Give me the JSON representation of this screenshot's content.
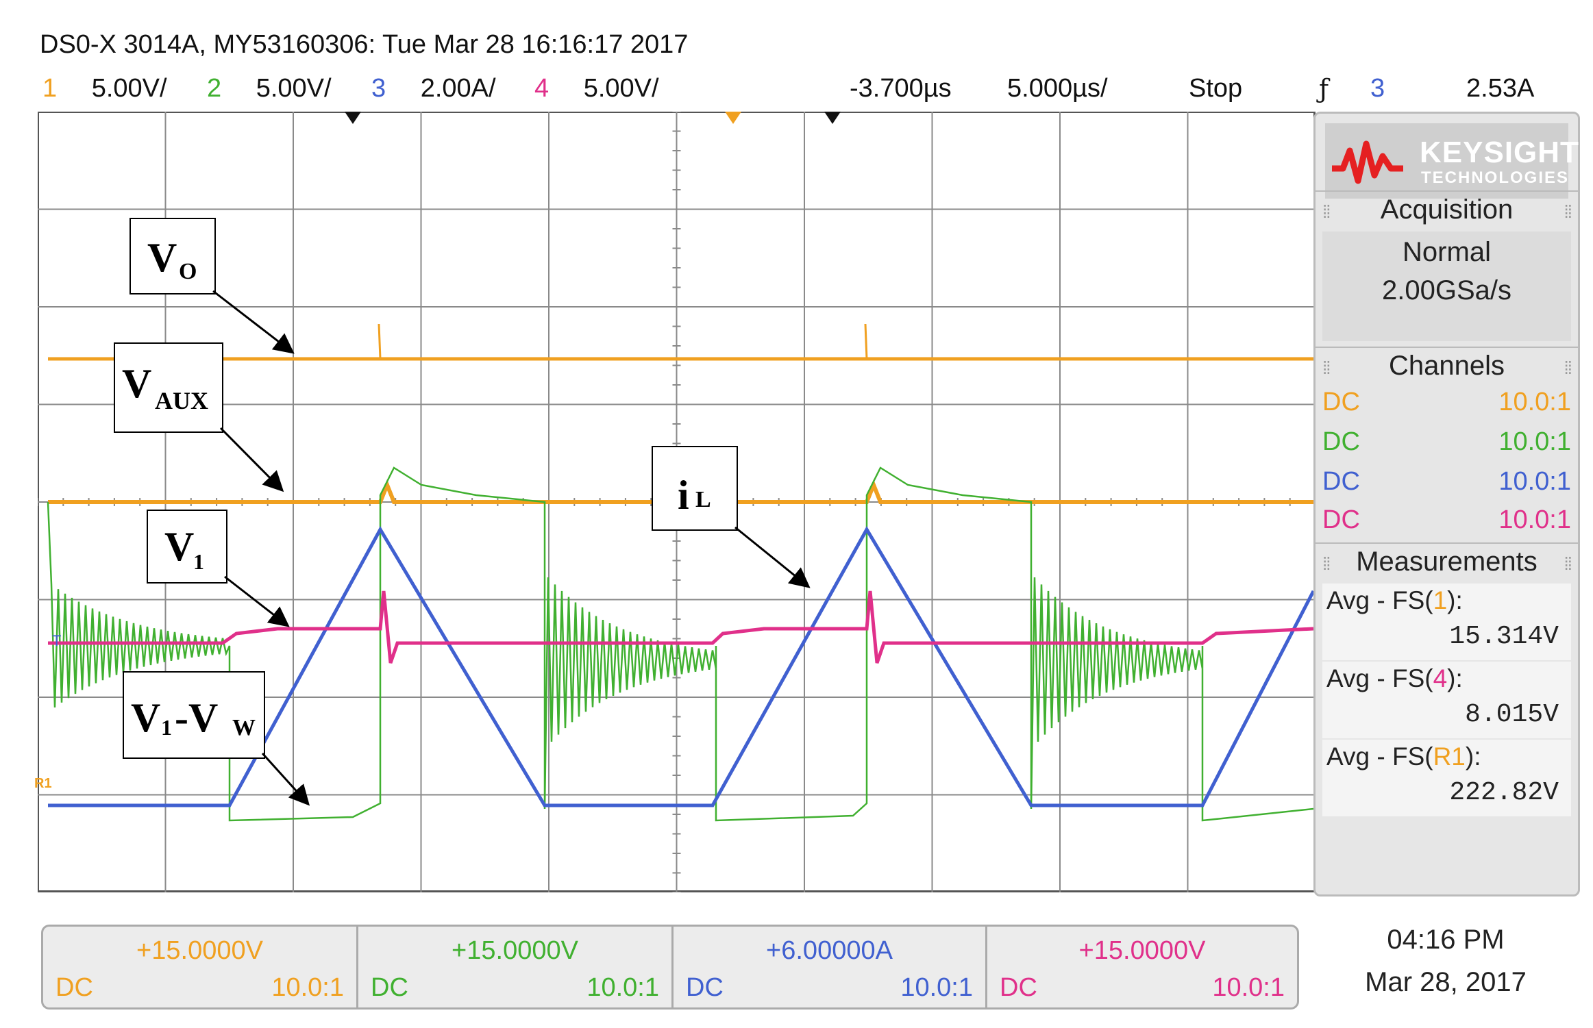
{
  "header": {
    "title": "DS0-X 3014A, MY53160306: Tue Mar 28 16:16:17 2017",
    "channels": [
      {
        "num": "1",
        "scale": "5.00V/",
        "color": "#f0a020"
      },
      {
        "num": "2",
        "scale": "5.00V/",
        "color": "#40b030"
      },
      {
        "num": "3",
        "scale": "2.00A/",
        "color": "#4060d0"
      },
      {
        "num": "4",
        "scale": "5.00V/",
        "color": "#e0308a"
      }
    ],
    "delay": "-3.700µs",
    "timebase": "5.000µs/",
    "run_state": "Stop",
    "trigger_icon": "ƒ",
    "trigger_channel": "3",
    "trigger_level": "2.53A"
  },
  "sidebar": {
    "brand": "KEYSIGHT",
    "brand_sub": "TECHNOLOGIES",
    "acquisition": {
      "title": "Acquisition",
      "mode": "Normal",
      "rate": "2.00GSa/s"
    },
    "channels": {
      "title": "Channels",
      "rows": [
        {
          "coupling": "DC",
          "ratio": "10.0:1",
          "color": "#f0a020"
        },
        {
          "coupling": "DC",
          "ratio": "10.0:1",
          "color": "#40b030"
        },
        {
          "coupling": "DC",
          "ratio": "10.0:1",
          "color": "#4060d0"
        },
        {
          "coupling": "DC",
          "ratio": "10.0:1",
          "color": "#e0308a"
        }
      ]
    },
    "measurements": {
      "title": "Measurements",
      "items": [
        {
          "prefix": "Avg - FS(",
          "src": "1",
          "suffix": "):",
          "value": "15.314V",
          "color": "#f0a020"
        },
        {
          "prefix": "Avg - FS(",
          "src": "4",
          "suffix": "):",
          "value": "8.015V",
          "color": "#e0308a"
        },
        {
          "prefix": "Avg - FS(",
          "src": "R1",
          "suffix": "):",
          "value": "222.82V",
          "color": "#f0a020"
        }
      ]
    }
  },
  "bottom": {
    "cells": [
      {
        "offset": "+15.0000V",
        "coupling": "DC",
        "ratio": "10.0:1",
        "color": "#f0a020"
      },
      {
        "offset": "+15.0000V",
        "coupling": "DC",
        "ratio": "10.0:1",
        "color": "#40b030"
      },
      {
        "offset": "+6.00000A",
        "coupling": "DC",
        "ratio": "10.0:1",
        "color": "#4060d0"
      },
      {
        "offset": "+15.0000V",
        "coupling": "DC",
        "ratio": "10.0:1",
        "color": "#e0308a"
      }
    ],
    "time": "04:16 PM",
    "date": "Mar 28, 2017"
  },
  "annotations": {
    "vo_main": "V",
    "vo_sub": "O",
    "vaux_main": "V",
    "vaux_sub": "AUX",
    "v1_main": "V",
    "v1_sub": "1",
    "il_main": "i",
    "il_sub": "L",
    "v1vw_a": "V",
    "v1vw_b": "1",
    "v1vw_c": "-V",
    "v1vw_d": "W"
  },
  "screen": {
    "trigger_marker": "T",
    "ground_marker": "R1"
  }
}
